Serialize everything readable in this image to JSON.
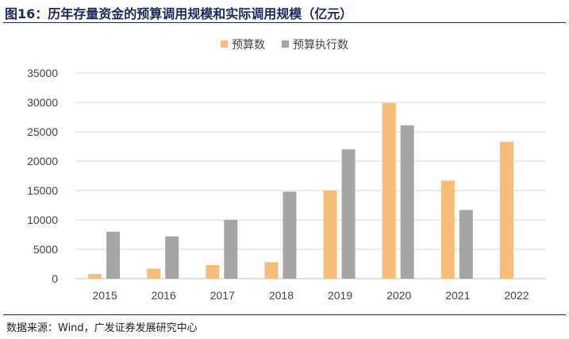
{
  "header": {
    "title": "图16：历年存量资金的预算调用规模和实际调用规模（亿元）"
  },
  "footer": {
    "source": "数据来源：Wind，广发证券发展研究中心"
  },
  "chart_data": {
    "type": "bar",
    "title": "",
    "categories": [
      "2015",
      "2016",
      "2017",
      "2018",
      "2019",
      "2020",
      "2021",
      "2022"
    ],
    "series": [
      {
        "name": "预算数",
        "color": "#F4BE7A",
        "values": [
          800,
          1700,
          2300,
          2800,
          15000,
          29900,
          16700,
          23300
        ]
      },
      {
        "name": "预算执行数",
        "color": "#A5A5A5",
        "values": [
          8000,
          7200,
          10000,
          14800,
          22000,
          26100,
          11700,
          null
        ]
      }
    ],
    "ylim": [
      0,
      35000
    ],
    "yticks": [
      0,
      5000,
      10000,
      15000,
      20000,
      25000,
      30000,
      35000
    ],
    "grid": true,
    "legend_position": "top-center"
  }
}
